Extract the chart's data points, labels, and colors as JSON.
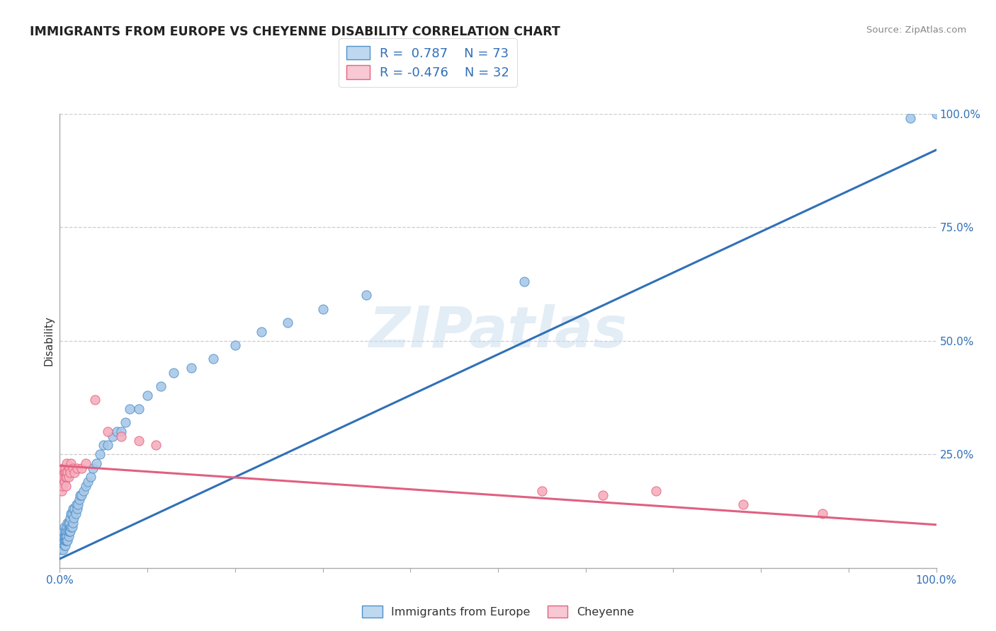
{
  "title": "IMMIGRANTS FROM EUROPE VS CHEYENNE DISABILITY CORRELATION CHART",
  "source_text": "Source: ZipAtlas.com",
  "ylabel": "Disability",
  "xlim": [
    0,
    1
  ],
  "ylim": [
    0,
    1
  ],
  "x_tick_labels": [
    "0.0%",
    "100.0%"
  ],
  "y_tick_labels": [
    "25.0%",
    "50.0%",
    "75.0%",
    "100.0%"
  ],
  "y_tick_positions": [
    0.25,
    0.5,
    0.75,
    1.0
  ],
  "watermark": "ZIPatlas",
  "blue_R": 0.787,
  "blue_N": 73,
  "pink_R": -0.476,
  "pink_N": 32,
  "blue_color": "#A8C8E8",
  "pink_color": "#F4B0BE",
  "blue_edge_color": "#5090C8",
  "pink_edge_color": "#E86080",
  "blue_line_color": "#3070B8",
  "pink_line_color": "#E06080",
  "legend_blue_fill": "#BED8F0",
  "legend_pink_fill": "#F8C8D4",
  "title_color": "#222222",
  "axis_color": "#aaaaaa",
  "grid_color": "#cccccc",
  "background_color": "#ffffff",
  "blue_scatter_x": [
    0.002,
    0.003,
    0.003,
    0.004,
    0.004,
    0.004,
    0.005,
    0.005,
    0.005,
    0.005,
    0.006,
    0.006,
    0.006,
    0.006,
    0.007,
    0.007,
    0.007,
    0.008,
    0.008,
    0.008,
    0.009,
    0.009,
    0.009,
    0.01,
    0.01,
    0.01,
    0.011,
    0.011,
    0.012,
    0.012,
    0.013,
    0.013,
    0.014,
    0.014,
    0.015,
    0.015,
    0.016,
    0.017,
    0.018,
    0.019,
    0.02,
    0.021,
    0.022,
    0.023,
    0.025,
    0.027,
    0.03,
    0.032,
    0.035,
    0.038,
    0.042,
    0.046,
    0.05,
    0.055,
    0.06,
    0.065,
    0.07,
    0.075,
    0.08,
    0.09,
    0.1,
    0.115,
    0.13,
    0.15,
    0.175,
    0.2,
    0.23,
    0.26,
    0.3,
    0.35,
    0.53,
    0.97,
    1.0
  ],
  "blue_scatter_y": [
    0.04,
    0.05,
    0.06,
    0.04,
    0.07,
    0.08,
    0.05,
    0.06,
    0.07,
    0.09,
    0.05,
    0.06,
    0.07,
    0.08,
    0.06,
    0.07,
    0.08,
    0.06,
    0.07,
    0.09,
    0.06,
    0.08,
    0.1,
    0.07,
    0.08,
    0.1,
    0.08,
    0.1,
    0.08,
    0.11,
    0.09,
    0.12,
    0.09,
    0.12,
    0.1,
    0.13,
    0.11,
    0.13,
    0.12,
    0.14,
    0.13,
    0.14,
    0.15,
    0.16,
    0.16,
    0.17,
    0.18,
    0.19,
    0.2,
    0.22,
    0.23,
    0.25,
    0.27,
    0.27,
    0.29,
    0.3,
    0.3,
    0.32,
    0.35,
    0.35,
    0.38,
    0.4,
    0.43,
    0.44,
    0.46,
    0.49,
    0.52,
    0.54,
    0.57,
    0.6,
    0.63,
    0.99,
    1.0
  ],
  "pink_scatter_x": [
    0.002,
    0.003,
    0.003,
    0.004,
    0.005,
    0.005,
    0.006,
    0.006,
    0.007,
    0.007,
    0.008,
    0.008,
    0.009,
    0.01,
    0.011,
    0.012,
    0.013,
    0.015,
    0.017,
    0.02,
    0.025,
    0.03,
    0.04,
    0.055,
    0.07,
    0.09,
    0.11,
    0.55,
    0.62,
    0.68,
    0.78,
    0.87
  ],
  "pink_scatter_y": [
    0.17,
    0.2,
    0.18,
    0.22,
    0.19,
    0.21,
    0.2,
    0.22,
    0.18,
    0.21,
    0.2,
    0.23,
    0.21,
    0.2,
    0.22,
    0.21,
    0.23,
    0.22,
    0.21,
    0.22,
    0.22,
    0.23,
    0.37,
    0.3,
    0.29,
    0.28,
    0.27,
    0.17,
    0.16,
    0.17,
    0.14,
    0.12
  ],
  "blue_line_x": [
    0.0,
    1.0
  ],
  "blue_line_y": [
    0.02,
    0.92
  ],
  "pink_line_x": [
    0.0,
    1.0
  ],
  "pink_line_y": [
    0.225,
    0.095
  ]
}
